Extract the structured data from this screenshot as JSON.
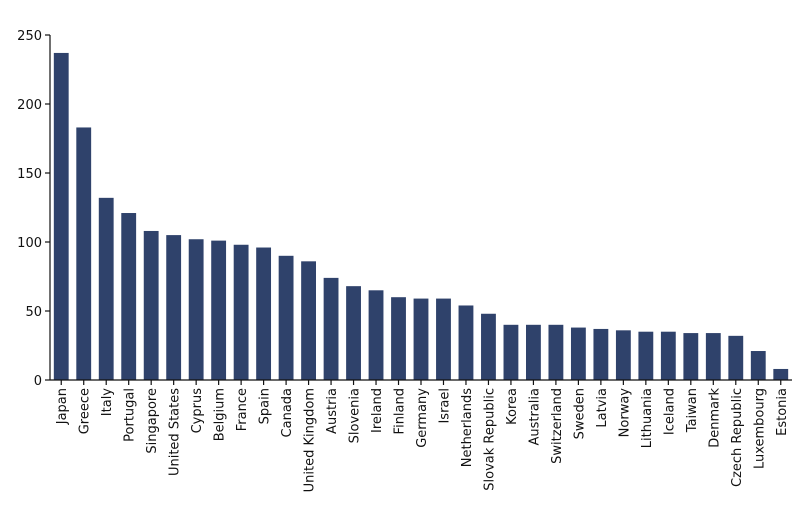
{
  "chart_data": {
    "type": "bar",
    "title": "",
    "xlabel": "",
    "ylabel": "",
    "ylim": [
      0,
      250
    ],
    "yticks": [
      0,
      50,
      100,
      150,
      200,
      250
    ],
    "grid": false,
    "legend": "none",
    "bar_color": "#2f426b",
    "categories": [
      "Japan",
      "Greece",
      "Italy",
      "Portugal",
      "Singapore",
      "United States",
      "Cyprus",
      "Belgium",
      "France",
      "Spain",
      "Canada",
      "United Kingdom",
      "Austria",
      "Slovenia",
      "Ireland",
      "Finland",
      "Germany",
      "Israel",
      "Netherlands",
      "Slovak Republic",
      "Korea",
      "Australia",
      "Switzerland",
      "Sweden",
      "Latvia",
      "Norway",
      "Lithuania",
      "Iceland",
      "Taiwan",
      "Denmark",
      "Czech Republic",
      "Luxembourg",
      "Estonia"
    ],
    "values": [
      237,
      183,
      132,
      121,
      108,
      105,
      102,
      101,
      98,
      96,
      90,
      86,
      74,
      68,
      65,
      60,
      59,
      59,
      54,
      48,
      40,
      40,
      40,
      38,
      37,
      36,
      35,
      35,
      34,
      34,
      32,
      21,
      8
    ]
  }
}
